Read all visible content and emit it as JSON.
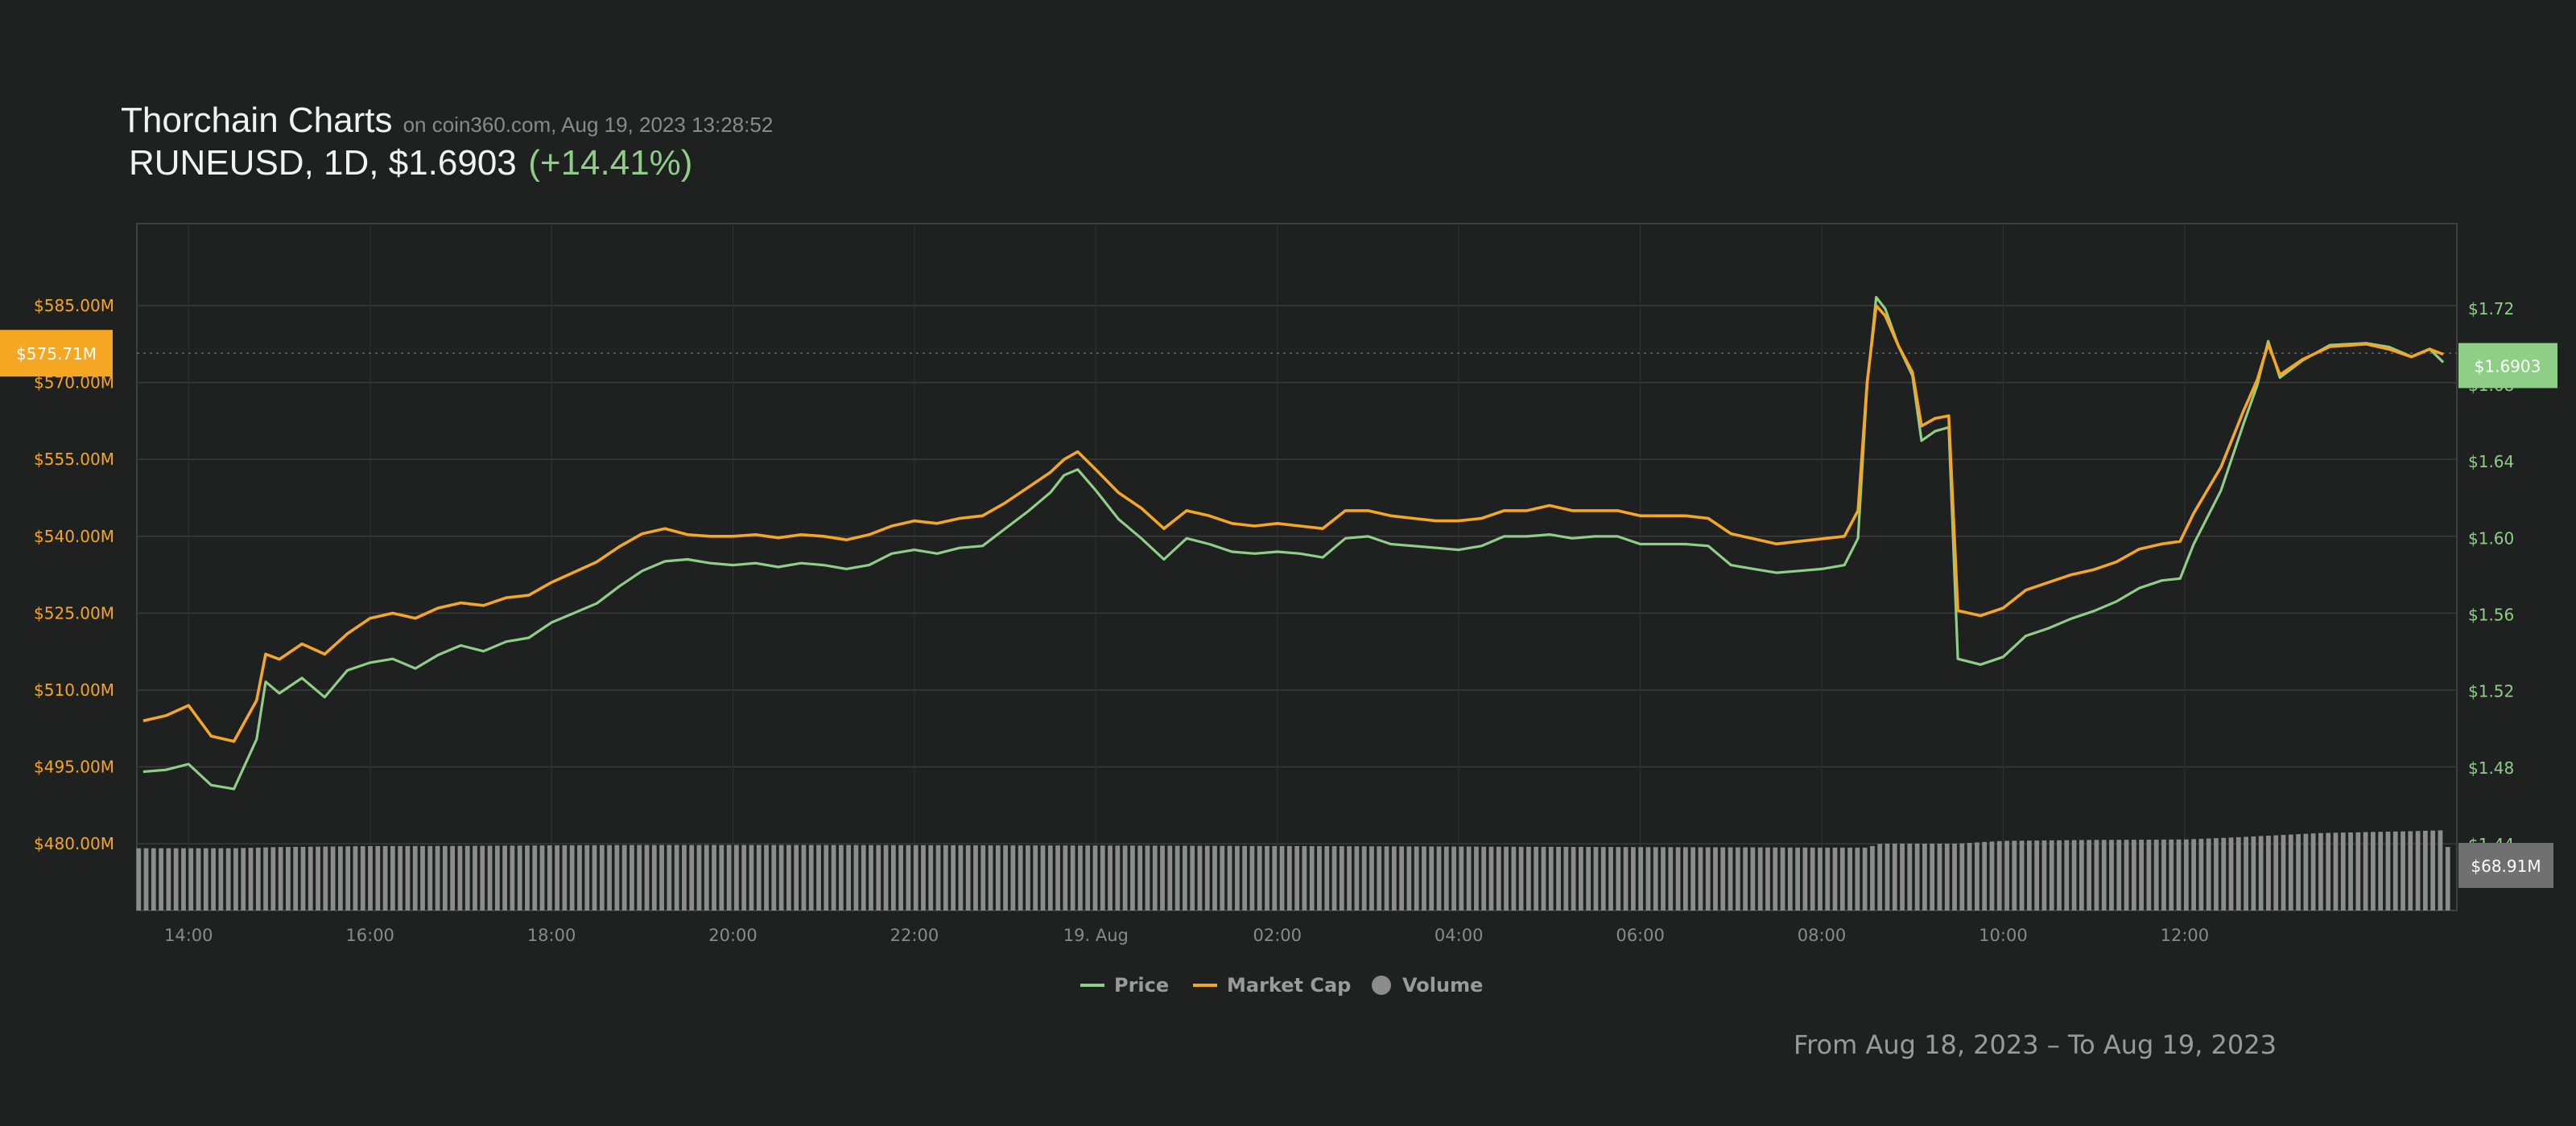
{
  "header": {
    "app_title": "Thorchain Charts",
    "source": "on coin360.com, Aug 19, 2023 13:28:52",
    "ticker": "RUNEUSD, 1D, $1.6903",
    "change": "(+14.41%)"
  },
  "footer": {
    "range": "From Aug 18, 2023 – To Aug 19, 2023"
  },
  "colors": {
    "background": "#1f2020",
    "price": "#8fce86",
    "market_cap": "#f5a623",
    "volume": "#8c8c8c",
    "grid": "#3a3b3b"
  },
  "chart_data": {
    "type": "line",
    "x_ticks": [
      "14:00",
      "16:00",
      "18:00",
      "20:00",
      "22:00",
      "19. Aug",
      "02:00",
      "04:00",
      "06:00",
      "08:00",
      "10:00",
      "12:00"
    ],
    "left_axis": {
      "series": "Market Cap",
      "ticks": [
        "$480.00M",
        "$495.00M",
        "$510.00M",
        "$525.00M",
        "$540.00M",
        "$555.00M",
        "$570.00M",
        "$585.00M"
      ],
      "range": [
        467,
        601
      ],
      "current_label": "$575.71M"
    },
    "right_axis": {
      "series": "Price",
      "ticks": [
        "$1.44",
        "$1.48",
        "$1.52",
        "$1.56",
        "$1.60",
        "$1.64",
        "$1.68",
        "$1.72"
      ],
      "range": [
        1.4055,
        1.7645
      ],
      "current_label": "$1.6903"
    },
    "volume": {
      "current_label": "$68.91M"
    },
    "legend": [
      {
        "name": "Price",
        "color": "#8fce86",
        "marker": "line"
      },
      {
        "name": "Market Cap",
        "color": "#f5a623",
        "marker": "line"
      },
      {
        "name": "Volume",
        "color": "#8c8c8c",
        "marker": "circle"
      }
    ],
    "price_points": [
      [
        13.5,
        1.478
      ],
      [
        13.75,
        1.479
      ],
      [
        14.0,
        1.482
      ],
      [
        14.25,
        1.471
      ],
      [
        14.5,
        1.469
      ],
      [
        14.75,
        1.495
      ],
      [
        14.85,
        1.525
      ],
      [
        15.0,
        1.519
      ],
      [
        15.25,
        1.527
      ],
      [
        15.5,
        1.517
      ],
      [
        15.75,
        1.531
      ],
      [
        16.0,
        1.535
      ],
      [
        16.25,
        1.537
      ],
      [
        16.5,
        1.532
      ],
      [
        16.75,
        1.539
      ],
      [
        17.0,
        1.544
      ],
      [
        17.25,
        1.541
      ],
      [
        17.5,
        1.546
      ],
      [
        17.75,
        1.548
      ],
      [
        18.0,
        1.556
      ],
      [
        18.25,
        1.561
      ],
      [
        18.5,
        1.566
      ],
      [
        18.75,
        1.575
      ],
      [
        19.0,
        1.583
      ],
      [
        19.25,
        1.588
      ],
      [
        19.5,
        1.589
      ],
      [
        19.75,
        1.587
      ],
      [
        20.0,
        1.586
      ],
      [
        20.25,
        1.587
      ],
      [
        20.5,
        1.585
      ],
      [
        20.75,
        1.587
      ],
      [
        21.0,
        1.586
      ],
      [
        21.25,
        1.584
      ],
      [
        21.5,
        1.586
      ],
      [
        21.75,
        1.592
      ],
      [
        22.0,
        1.594
      ],
      [
        22.25,
        1.592
      ],
      [
        22.5,
        1.595
      ],
      [
        22.75,
        1.596
      ],
      [
        23.0,
        1.605
      ],
      [
        23.25,
        1.614
      ],
      [
        23.5,
        1.624
      ],
      [
        23.65,
        1.633
      ],
      [
        23.8,
        1.636
      ],
      [
        24.0,
        1.625
      ],
      [
        24.25,
        1.61
      ],
      [
        24.5,
        1.6
      ],
      [
        24.75,
        1.589
      ],
      [
        25.0,
        1.6
      ],
      [
        25.25,
        1.597
      ],
      [
        25.5,
        1.593
      ],
      [
        25.75,
        1.592
      ],
      [
        26.0,
        1.593
      ],
      [
        26.25,
        1.592
      ],
      [
        26.5,
        1.59
      ],
      [
        26.75,
        1.6
      ],
      [
        27.0,
        1.601
      ],
      [
        27.25,
        1.597
      ],
      [
        27.5,
        1.596
      ],
      [
        27.75,
        1.595
      ],
      [
        28.0,
        1.594
      ],
      [
        28.25,
        1.596
      ],
      [
        28.5,
        1.601
      ],
      [
        28.75,
        1.601
      ],
      [
        29.0,
        1.602
      ],
      [
        29.25,
        1.6
      ],
      [
        29.5,
        1.601
      ],
      [
        29.75,
        1.601
      ],
      [
        30.0,
        1.597
      ],
      [
        30.25,
        1.597
      ],
      [
        30.5,
        1.597
      ],
      [
        30.75,
        1.596
      ],
      [
        31.0,
        1.586
      ],
      [
        31.25,
        1.584
      ],
      [
        31.5,
        1.582
      ],
      [
        31.75,
        1.583
      ],
      [
        32.0,
        1.584
      ],
      [
        32.25,
        1.586
      ],
      [
        32.4,
        1.6
      ],
      [
        32.5,
        1.68
      ],
      [
        32.6,
        1.726
      ],
      [
        32.7,
        1.72
      ],
      [
        32.85,
        1.7
      ],
      [
        33.0,
        1.685
      ],
      [
        33.1,
        1.651
      ],
      [
        33.25,
        1.656
      ],
      [
        33.4,
        1.658
      ],
      [
        33.5,
        1.537
      ],
      [
        33.75,
        1.534
      ],
      [
        34.0,
        1.538
      ],
      [
        34.25,
        1.549
      ],
      [
        34.5,
        1.553
      ],
      [
        34.75,
        1.558
      ],
      [
        35.0,
        1.562
      ],
      [
        35.25,
        1.567
      ],
      [
        35.5,
        1.574
      ],
      [
        35.75,
        1.578
      ],
      [
        35.95,
        1.579
      ],
      [
        36.1,
        1.597
      ],
      [
        36.4,
        1.625
      ],
      [
        36.65,
        1.66
      ],
      [
        36.8,
        1.68
      ],
      [
        36.92,
        1.703
      ],
      [
        37.05,
        1.684
      ],
      [
        37.3,
        1.693
      ],
      [
        37.6,
        1.701
      ],
      [
        38.0,
        1.702
      ],
      [
        38.25,
        1.7
      ],
      [
        38.5,
        1.695
      ],
      [
        38.7,
        1.699
      ],
      [
        38.85,
        1.692
      ]
    ],
    "market_cap_points": [
      [
        13.5,
        504.0
      ],
      [
        13.75,
        505.0
      ],
      [
        14.0,
        507.0
      ],
      [
        14.25,
        501.0
      ],
      [
        14.5,
        500.0
      ],
      [
        14.75,
        508.0
      ],
      [
        14.85,
        517.0
      ],
      [
        15.0,
        516.0
      ],
      [
        15.25,
        519.0
      ],
      [
        15.5,
        517.0
      ],
      [
        15.75,
        521.0
      ],
      [
        16.0,
        524.0
      ],
      [
        16.25,
        525.0
      ],
      [
        16.5,
        524.0
      ],
      [
        16.75,
        526.0
      ],
      [
        17.0,
        527.0
      ],
      [
        17.25,
        526.5
      ],
      [
        17.5,
        528.0
      ],
      [
        17.75,
        528.5
      ],
      [
        18.0,
        531.0
      ],
      [
        18.25,
        533.0
      ],
      [
        18.5,
        535.0
      ],
      [
        18.75,
        538.0
      ],
      [
        19.0,
        540.5
      ],
      [
        19.25,
        541.5
      ],
      [
        19.5,
        540.3
      ],
      [
        19.75,
        540.0
      ],
      [
        20.0,
        540.0
      ],
      [
        20.25,
        540.3
      ],
      [
        20.5,
        539.7
      ],
      [
        20.75,
        540.3
      ],
      [
        21.0,
        540.0
      ],
      [
        21.25,
        539.3
      ],
      [
        21.5,
        540.3
      ],
      [
        21.75,
        542.0
      ],
      [
        22.0,
        543.0
      ],
      [
        22.25,
        542.5
      ],
      [
        22.5,
        543.5
      ],
      [
        22.75,
        544.0
      ],
      [
        23.0,
        546.5
      ],
      [
        23.25,
        549.5
      ],
      [
        23.5,
        552.5
      ],
      [
        23.65,
        555.0
      ],
      [
        23.8,
        556.5
      ],
      [
        24.0,
        553.0
      ],
      [
        24.25,
        548.5
      ],
      [
        24.5,
        545.5
      ],
      [
        24.75,
        541.5
      ],
      [
        25.0,
        545.0
      ],
      [
        25.25,
        544.0
      ],
      [
        25.5,
        542.5
      ],
      [
        25.75,
        542.0
      ],
      [
        26.0,
        542.5
      ],
      [
        26.25,
        542.0
      ],
      [
        26.5,
        541.5
      ],
      [
        26.75,
        545.0
      ],
      [
        27.0,
        545.0
      ],
      [
        27.25,
        544.0
      ],
      [
        27.5,
        543.5
      ],
      [
        27.75,
        543.0
      ],
      [
        28.0,
        543.0
      ],
      [
        28.25,
        543.5
      ],
      [
        28.5,
        545.0
      ],
      [
        28.75,
        545.0
      ],
      [
        29.0,
        546.0
      ],
      [
        29.25,
        545.0
      ],
      [
        29.5,
        545.0
      ],
      [
        29.75,
        545.0
      ],
      [
        30.0,
        544.0
      ],
      [
        30.25,
        544.0
      ],
      [
        30.5,
        544.0
      ],
      [
        30.75,
        543.5
      ],
      [
        31.0,
        540.5
      ],
      [
        31.25,
        539.5
      ],
      [
        31.5,
        538.5
      ],
      [
        31.75,
        539.0
      ],
      [
        32.0,
        539.5
      ],
      [
        32.25,
        540.0
      ],
      [
        32.4,
        545.0
      ],
      [
        32.5,
        570.0
      ],
      [
        32.6,
        585.0
      ],
      [
        32.7,
        583.0
      ],
      [
        32.85,
        577.0
      ],
      [
        33.0,
        572.0
      ],
      [
        33.1,
        561.5
      ],
      [
        33.25,
        563.0
      ],
      [
        33.4,
        563.5
      ],
      [
        33.5,
        525.5
      ],
      [
        33.75,
        524.5
      ],
      [
        34.0,
        526.0
      ],
      [
        34.25,
        529.5
      ],
      [
        34.5,
        531.0
      ],
      [
        34.75,
        532.5
      ],
      [
        35.0,
        533.5
      ],
      [
        35.25,
        535.0
      ],
      [
        35.5,
        537.5
      ],
      [
        35.75,
        538.5
      ],
      [
        35.95,
        539.0
      ],
      [
        36.1,
        544.5
      ],
      [
        36.4,
        553.5
      ],
      [
        36.65,
        564.5
      ],
      [
        36.8,
        570.5
      ],
      [
        36.92,
        577.5
      ],
      [
        37.05,
        571.5
      ],
      [
        37.3,
        574.5
      ],
      [
        37.6,
        577.0
      ],
      [
        38.0,
        577.5
      ],
      [
        38.25,
        576.5
      ],
      [
        38.5,
        575.0
      ],
      [
        38.7,
        576.5
      ],
      [
        38.85,
        575.5
      ]
    ],
    "volume_points": [
      [
        13.5,
        67.5
      ],
      [
        14.5,
        67.5
      ],
      [
        15.0,
        68.8
      ],
      [
        16.0,
        69.8
      ],
      [
        17.0,
        70.0
      ],
      [
        18.0,
        70.6
      ],
      [
        19.0,
        71.0
      ],
      [
        20.0,
        71.0
      ],
      [
        21.0,
        71.0
      ],
      [
        22.0,
        70.8
      ],
      [
        23.0,
        70.6
      ],
      [
        24.0,
        70.4
      ],
      [
        25.0,
        70.2
      ],
      [
        26.0,
        69.9
      ],
      [
        27.0,
        69.6
      ],
      [
        28.0,
        69.3
      ],
      [
        29.0,
        69.0
      ],
      [
        30.0,
        68.7
      ],
      [
        31.0,
        68.5
      ],
      [
        32.0,
        68.2
      ],
      [
        32.5,
        68.2
      ],
      [
        32.65,
        72.5
      ],
      [
        33.5,
        72.5
      ],
      [
        34.0,
        75.5
      ],
      [
        35.0,
        76.5
      ],
      [
        36.0,
        77.0
      ],
      [
        36.5,
        79.0
      ],
      [
        37.0,
        81.5
      ],
      [
        37.5,
        84.0
      ],
      [
        38.0,
        85.0
      ],
      [
        38.5,
        86.0
      ],
      [
        38.85,
        87.0
      ],
      [
        38.9,
        68.9
      ]
    ]
  }
}
